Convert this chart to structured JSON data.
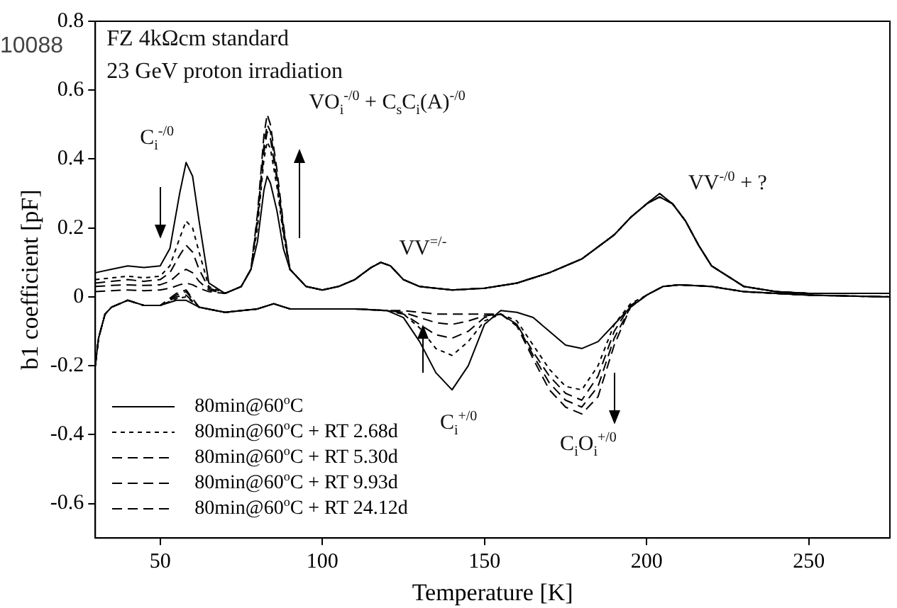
{
  "chart_data": {
    "type": "line",
    "xlabel": "Temperature [K]",
    "ylabel": "b1 coefficient [pF]",
    "xlim": [
      30,
      275
    ],
    "xticks": [
      50,
      100,
      150,
      200,
      250
    ],
    "ylim": [
      -0.7,
      0.8
    ],
    "yticks": [
      -0.6,
      -0.4,
      -0.2,
      0,
      0.2,
      0.4,
      0.6,
      0.8
    ],
    "grid": false,
    "legend": "bottom left",
    "marker": "none",
    "annotations": [
      "10088",
      "FZ 4kΩcm standard",
      "23 GeV proton irradiation",
      "C$_{i}$$^{-/0}$",
      "VO$_{i}$$^{-/0}$ + C$_{s}$C$_{i}$(A)$^{-/0}$",
      "VV$^{=/-}$",
      "VV$^{-/0}$ + ?",
      "C$_{i}$$^{+/0}$",
      "C$_{i}$O$_{i}$$^{+/0}$"
    ],
    "series": [
      {
        "name": "80min@60$^{o}$C",
        "color": "#000000",
        "line_style": "solid",
        "x": [
          30,
          31,
          33,
          35,
          40,
          45,
          50,
          55,
          58,
          62,
          70,
          80,
          85,
          90,
          100,
          110,
          120,
          125,
          130,
          135,
          140,
          145,
          150,
          155,
          160,
          165,
          170,
          175,
          180,
          185,
          190,
          195,
          200,
          205,
          210,
          220,
          230,
          250,
          275
        ],
        "values": [
          -0.2,
          -0.12,
          -0.05,
          -0.03,
          -0.01,
          -0.025,
          -0.025,
          -0.01,
          -0.01,
          -0.03,
          -0.045,
          -0.035,
          -0.02,
          -0.035,
          -0.035,
          -0.035,
          -0.04,
          -0.06,
          -0.13,
          -0.22,
          -0.27,
          -0.2,
          -0.08,
          -0.04,
          -0.045,
          -0.06,
          -0.1,
          -0.14,
          -0.15,
          -0.13,
          -0.08,
          -0.03,
          0.005,
          0.03,
          0.035,
          0.03,
          0.015,
          0.005,
          0
        ]
      },
      {
        "color": "#000000",
        "line_style": "solid",
        "x": [
          30,
          35,
          40,
          45,
          50,
          53,
          56,
          58,
          60,
          62,
          65,
          70,
          75,
          78,
          80,
          82,
          83,
          84,
          86,
          88,
          90,
          95,
          100,
          105,
          110,
          115,
          118,
          121,
          125,
          130,
          140,
          150,
          160,
          170,
          180,
          190,
          195,
          200,
          204,
          208,
          212,
          216,
          220,
          230,
          240,
          250,
          260,
          275
        ],
        "values": [
          0.07,
          0.08,
          0.09,
          0.085,
          0.09,
          0.14,
          0.3,
          0.39,
          0.35,
          0.22,
          0.04,
          0.01,
          0.03,
          0.08,
          0.16,
          0.31,
          0.35,
          0.33,
          0.25,
          0.14,
          0.08,
          0.03,
          0.02,
          0.03,
          0.05,
          0.085,
          0.1,
          0.09,
          0.05,
          0.03,
          0.02,
          0.025,
          0.04,
          0.07,
          0.11,
          0.18,
          0.23,
          0.27,
          0.29,
          0.27,
          0.22,
          0.15,
          0.09,
          0.03,
          0.015,
          0.01,
          0.01,
          0.01
        ]
      },
      {
        "name": "80min@60$^{o}$C + RT 2.68d",
        "color": "#000000",
        "line_style": "dotted",
        "x": [
          30,
          31,
          33,
          35,
          40,
          45,
          50,
          55,
          58,
          62,
          70,
          80,
          85,
          90,
          100,
          110,
          120,
          125,
          130,
          135,
          140,
          145,
          150,
          155,
          160,
          165,
          170,
          175,
          180,
          185,
          190,
          195,
          200,
          205,
          210,
          220,
          230,
          250,
          275
        ],
        "values": [
          -0.2,
          -0.12,
          -0.05,
          -0.03,
          -0.01,
          -0.025,
          -0.025,
          -0.005,
          0,
          -0.03,
          -0.045,
          -0.035,
          -0.02,
          -0.035,
          -0.035,
          -0.035,
          -0.04,
          -0.05,
          -0.09,
          -0.15,
          -0.17,
          -0.13,
          -0.07,
          -0.05,
          -0.07,
          -0.14,
          -0.21,
          -0.26,
          -0.27,
          -0.2,
          -0.08,
          -0.02,
          0.005,
          0.03,
          0.035,
          0.03,
          0.015,
          0.005,
          0
        ]
      },
      {
        "color": "#000000",
        "line_style": "dotted",
        "x": [
          30,
          35,
          40,
          45,
          50,
          53,
          56,
          58,
          60,
          62,
          65,
          70,
          75,
          78,
          80,
          82,
          83,
          84,
          86,
          88,
          90,
          95,
          100,
          105,
          110,
          115,
          118,
          121,
          125,
          130,
          140,
          150,
          160,
          170,
          180,
          190,
          195,
          200,
          204,
          208,
          212,
          216,
          220,
          230,
          240,
          250,
          260,
          275
        ],
        "values": [
          0.05,
          0.055,
          0.06,
          0.055,
          0.06,
          0.09,
          0.17,
          0.22,
          0.2,
          0.13,
          0.03,
          0.01,
          0.03,
          0.08,
          0.2,
          0.4,
          0.45,
          0.43,
          0.32,
          0.18,
          0.08,
          0.03,
          0.02,
          0.03,
          0.05,
          0.085,
          0.1,
          0.09,
          0.05,
          0.03,
          0.02,
          0.025,
          0.04,
          0.07,
          0.11,
          0.18,
          0.23,
          0.27,
          0.29,
          0.27,
          0.22,
          0.15,
          0.09,
          0.03,
          0.015,
          0.01,
          0.01,
          0.01
        ]
      },
      {
        "name": "80min@60$^{o}$C + RT 5.30d",
        "color": "#000000",
        "line_style": "dashed",
        "x": [
          30,
          31,
          33,
          35,
          40,
          45,
          50,
          55,
          58,
          62,
          70,
          80,
          85,
          90,
          100,
          110,
          120,
          125,
          130,
          135,
          140,
          145,
          150,
          155,
          160,
          165,
          170,
          175,
          180,
          185,
          190,
          195,
          200,
          205,
          210,
          220,
          230,
          250,
          275
        ],
        "values": [
          -0.2,
          -0.12,
          -0.05,
          -0.03,
          -0.01,
          -0.025,
          -0.025,
          0,
          0.005,
          -0.03,
          -0.045,
          -0.035,
          -0.02,
          -0.035,
          -0.035,
          -0.035,
          -0.04,
          -0.05,
          -0.08,
          -0.11,
          -0.12,
          -0.1,
          -0.06,
          -0.05,
          -0.08,
          -0.16,
          -0.23,
          -0.28,
          -0.3,
          -0.23,
          -0.1,
          -0.025,
          0.005,
          0.03,
          0.035,
          0.03,
          0.015,
          0.005,
          0
        ]
      },
      {
        "color": "#000000",
        "line_style": "dashed",
        "x": [
          30,
          35,
          40,
          45,
          50,
          53,
          56,
          58,
          60,
          62,
          65,
          70,
          75,
          78,
          80,
          82,
          83,
          84,
          86,
          88,
          90,
          95,
          100,
          105,
          110,
          115,
          118,
          121,
          125,
          130,
          140,
          150,
          160,
          170,
          180,
          190,
          195,
          200,
          204,
          208,
          212,
          216,
          220,
          230,
          240,
          250,
          260,
          275
        ],
        "values": [
          0.04,
          0.045,
          0.05,
          0.045,
          0.05,
          0.07,
          0.12,
          0.15,
          0.13,
          0.08,
          0.025,
          0.01,
          0.03,
          0.08,
          0.22,
          0.42,
          0.48,
          0.46,
          0.34,
          0.19,
          0.08,
          0.03,
          0.02,
          0.03,
          0.05,
          0.085,
          0.1,
          0.09,
          0.05,
          0.03,
          0.02,
          0.025,
          0.04,
          0.07,
          0.11,
          0.18,
          0.23,
          0.27,
          0.29,
          0.27,
          0.22,
          0.15,
          0.09,
          0.03,
          0.015,
          0.01,
          0.01,
          0.01
        ]
      },
      {
        "name": "80min@60$^{o}$C + RT 9.93d",
        "color": "#000000",
        "line_style": "dashed",
        "x": [
          30,
          31,
          33,
          35,
          40,
          45,
          50,
          55,
          58,
          62,
          70,
          80,
          85,
          90,
          100,
          110,
          120,
          125,
          130,
          135,
          140,
          145,
          150,
          155,
          160,
          165,
          170,
          175,
          180,
          185,
          190,
          195,
          200,
          205,
          210,
          220,
          230,
          250,
          275
        ],
        "values": [
          -0.2,
          -0.12,
          -0.05,
          -0.03,
          -0.01,
          -0.025,
          -0.025,
          0.005,
          0.015,
          -0.03,
          -0.045,
          -0.035,
          -0.02,
          -0.035,
          -0.035,
          -0.035,
          -0.04,
          -0.045,
          -0.06,
          -0.075,
          -0.08,
          -0.07,
          -0.055,
          -0.05,
          -0.08,
          -0.17,
          -0.25,
          -0.3,
          -0.32,
          -0.26,
          -0.12,
          -0.03,
          0.005,
          0.03,
          0.035,
          0.03,
          0.015,
          0.005,
          0
        ]
      },
      {
        "color": "#000000",
        "line_style": "dashed",
        "x": [
          30,
          35,
          40,
          45,
          50,
          53,
          56,
          58,
          60,
          62,
          65,
          70,
          75,
          78,
          80,
          82,
          83,
          84,
          86,
          88,
          90,
          95,
          100,
          105,
          110,
          115,
          118,
          121,
          125,
          130,
          140,
          150,
          160,
          170,
          180,
          190,
          195,
          200,
          204,
          208,
          212,
          216,
          220,
          230,
          240,
          250,
          260,
          275
        ],
        "values": [
          0.03,
          0.033,
          0.035,
          0.033,
          0.035,
          0.045,
          0.07,
          0.08,
          0.07,
          0.045,
          0.02,
          0.01,
          0.03,
          0.08,
          0.23,
          0.44,
          0.5,
          0.48,
          0.35,
          0.2,
          0.08,
          0.03,
          0.02,
          0.03,
          0.05,
          0.085,
          0.1,
          0.09,
          0.05,
          0.03,
          0.02,
          0.025,
          0.04,
          0.07,
          0.11,
          0.18,
          0.23,
          0.27,
          0.3,
          0.27,
          0.22,
          0.15,
          0.09,
          0.03,
          0.015,
          0.01,
          0.01,
          0.01
        ]
      },
      {
        "name": "80min@60$^{o}$C + RT 24.12d",
        "color": "#000000",
        "line_style": "dashed",
        "x": [
          30,
          31,
          33,
          35,
          40,
          45,
          50,
          55,
          58,
          62,
          70,
          80,
          85,
          90,
          100,
          110,
          120,
          125,
          130,
          135,
          140,
          145,
          150,
          155,
          160,
          165,
          170,
          175,
          180,
          185,
          190,
          195,
          200,
          205,
          210,
          220,
          230,
          250,
          275
        ],
        "values": [
          -0.2,
          -0.12,
          -0.05,
          -0.03,
          -0.01,
          -0.025,
          -0.025,
          0.01,
          0.02,
          -0.03,
          -0.045,
          -0.035,
          -0.02,
          -0.035,
          -0.035,
          -0.035,
          -0.04,
          -0.04,
          -0.045,
          -0.05,
          -0.05,
          -0.05,
          -0.05,
          -0.05,
          -0.085,
          -0.18,
          -0.27,
          -0.32,
          -0.34,
          -0.29,
          -0.14,
          -0.03,
          0.005,
          0.03,
          0.035,
          0.03,
          0.015,
          0.005,
          0
        ]
      },
      {
        "color": "#000000",
        "line_style": "dashed",
        "x": [
          30,
          35,
          40,
          45,
          50,
          53,
          56,
          58,
          60,
          62,
          65,
          70,
          75,
          78,
          80,
          82,
          83,
          84,
          86,
          88,
          90,
          95,
          100,
          105,
          110,
          115,
          118,
          121,
          125,
          130,
          140,
          150,
          160,
          170,
          180,
          190,
          195,
          200,
          204,
          208,
          212,
          216,
          220,
          230,
          240,
          250,
          260,
          275
        ],
        "values": [
          0.015,
          0.018,
          0.02,
          0.018,
          0.02,
          0.025,
          0.035,
          0.04,
          0.035,
          0.025,
          0.015,
          0.01,
          0.03,
          0.08,
          0.24,
          0.47,
          0.53,
          0.5,
          0.37,
          0.21,
          0.08,
          0.03,
          0.02,
          0.03,
          0.05,
          0.085,
          0.1,
          0.09,
          0.05,
          0.03,
          0.02,
          0.025,
          0.04,
          0.07,
          0.11,
          0.18,
          0.23,
          0.27,
          0.3,
          0.27,
          0.22,
          0.15,
          0.09,
          0.03,
          0.015,
          0.01,
          0.01,
          0.01
        ]
      }
    ]
  }
}
